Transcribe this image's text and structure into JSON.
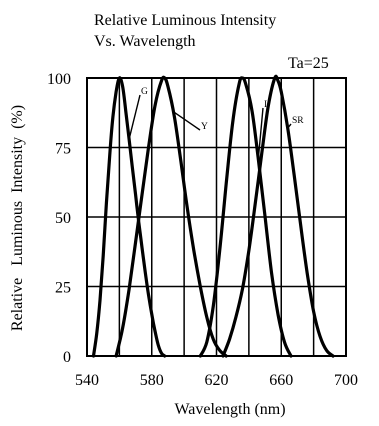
{
  "chart_data": {
    "type": "line",
    "title": "Relative Luminous Intensity",
    "subtitle": "Vs. Wavelength",
    "annotation": "Ta=25",
    "xlabel": "Wavelength (nm)",
    "ylabel": "Relative   Luminous  Intensity  (%)",
    "xlim": [
      540,
      700
    ],
    "ylim": [
      0,
      100
    ],
    "xticks": [
      540,
      580,
      620,
      660,
      700
    ],
    "yticks": [
      0,
      25,
      50,
      75,
      100
    ],
    "grid": true,
    "series": [
      {
        "name": "G",
        "x": [
          544,
          546,
          548,
          550,
          552,
          554,
          556,
          558,
          560,
          562,
          564,
          566,
          568,
          570,
          572,
          574,
          576,
          578,
          580,
          582,
          584,
          586,
          588
        ],
        "y": [
          0,
          8,
          20,
          36,
          55,
          72,
          86,
          95,
          100,
          97,
          88,
          78,
          68,
          58,
          48,
          39,
          30,
          22,
          15,
          9,
          4,
          1,
          0
        ]
      },
      {
        "name": "Y",
        "x": [
          558,
          562,
          566,
          570,
          574,
          578,
          582,
          586,
          588,
          590,
          594,
          598,
          602,
          606,
          610,
          614,
          618,
          622,
          626
        ],
        "y": [
          0,
          10,
          24,
          41,
          58,
          75,
          90,
          99,
          100,
          97,
          86,
          70,
          53,
          38,
          25,
          14,
          6,
          2,
          0
        ]
      },
      {
        "name": "I",
        "x": [
          610,
          614,
          618,
          622,
          626,
          630,
          634,
          636,
          638,
          642,
          646,
          650,
          654,
          658,
          662,
          666
        ],
        "y": [
          0,
          5,
          18,
          38,
          62,
          84,
          98,
          100,
          98,
          88,
          70,
          50,
          30,
          15,
          5,
          0
        ]
      },
      {
        "name": "SR",
        "x": [
          624,
          628,
          632,
          636,
          640,
          644,
          648,
          652,
          656,
          658,
          660,
          664,
          668,
          672,
          676,
          680,
          684,
          688,
          692
        ],
        "y": [
          0,
          6,
          14,
          24,
          38,
          55,
          73,
          90,
          100,
          99,
          95,
          82,
          65,
          47,
          30,
          16,
          7,
          2,
          0
        ]
      }
    ]
  }
}
